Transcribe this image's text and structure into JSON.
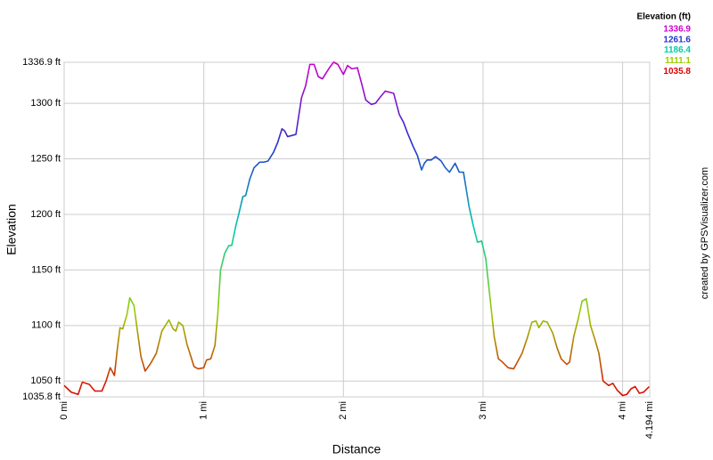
{
  "chart_data": {
    "type": "line",
    "x_label": "Distance",
    "y_label": "Elevation",
    "credit": "created by GPSVisualizer.com",
    "color_scale": {
      "title": "Elevation (ft)",
      "stops": [
        1336.9,
        1261.6,
        1186.4,
        1111.1,
        1035.8
      ],
      "colors": [
        "#cc00cc",
        "#2233cc",
        "#00ccaa",
        "#99cc00",
        "#dd0000"
      ]
    },
    "grid": true,
    "xlim": [
      0,
      4.194
    ],
    "xticks": [
      {
        "value": 0,
        "label": "0 mi"
      },
      {
        "value": 1,
        "label": "1 mi"
      },
      {
        "value": 2,
        "label": "2 mi"
      },
      {
        "value": 3,
        "label": "3 mi"
      },
      {
        "value": 4,
        "label": "4 mi"
      },
      {
        "value": 4.194,
        "label": "4.194 mi"
      }
    ],
    "ylim": [
      1035.8,
      1336.9
    ],
    "yticks": [
      {
        "value": 1035.8,
        "label": "1035.8 ft"
      },
      {
        "value": 1050,
        "label": "1050 ft"
      },
      {
        "value": 1100,
        "label": "1100 ft"
      },
      {
        "value": 1150,
        "label": "1150 ft"
      },
      {
        "value": 1200,
        "label": "1200 ft"
      },
      {
        "value": 1250,
        "label": "1250 ft"
      },
      {
        "value": 1300,
        "label": "1300 ft"
      },
      {
        "value": 1336.9,
        "label": "1336.9 ft"
      }
    ],
    "x": [
      0,
      0.05,
      0.1,
      0.13,
      0.18,
      0.22,
      0.27,
      0.3,
      0.33,
      0.36,
      0.38,
      0.4,
      0.42,
      0.45,
      0.47,
      0.5,
      0.53,
      0.55,
      0.58,
      0.62,
      0.66,
      0.7,
      0.73,
      0.75,
      0.78,
      0.8,
      0.82,
      0.85,
      0.88,
      0.9,
      0.93,
      0.96,
      1.0,
      1.02,
      1.05,
      1.08,
      1.1,
      1.12,
      1.15,
      1.18,
      1.2,
      1.23,
      1.25,
      1.28,
      1.3,
      1.33,
      1.36,
      1.4,
      1.43,
      1.46,
      1.5,
      1.53,
      1.56,
      1.58,
      1.6,
      1.63,
      1.66,
      1.7,
      1.73,
      1.76,
      1.79,
      1.82,
      1.85,
      1.88,
      1.9,
      1.93,
      1.96,
      2.0,
      2.03,
      2.06,
      2.1,
      2.13,
      2.16,
      2.2,
      2.23,
      2.26,
      2.3,
      2.33,
      2.36,
      2.4,
      2.43,
      2.46,
      2.5,
      2.53,
      2.56,
      2.58,
      2.6,
      2.63,
      2.66,
      2.7,
      2.73,
      2.76,
      2.8,
      2.83,
      2.86,
      2.9,
      2.93,
      2.96,
      2.99,
      3.02,
      3.05,
      3.08,
      3.11,
      3.14,
      3.18,
      3.22,
      3.25,
      3.28,
      3.32,
      3.35,
      3.38,
      3.4,
      3.43,
      3.46,
      3.5,
      3.53,
      3.56,
      3.6,
      3.62,
      3.65,
      3.68,
      3.71,
      3.74,
      3.77,
      3.8,
      3.83,
      3.86,
      3.9,
      3.93,
      3.96,
      4.0,
      4.03,
      4.06,
      4.09,
      4.12,
      4.15,
      4.19
    ],
    "values": [
      1046,
      1040,
      1038,
      1049,
      1047,
      1041,
      1041,
      1050,
      1062,
      1055,
      1078,
      1098,
      1097,
      1110,
      1125,
      1118,
      1090,
      1072,
      1059,
      1066,
      1075,
      1095,
      1101,
      1105,
      1097,
      1095,
      1103,
      1100,
      1083,
      1075,
      1063,
      1061,
      1062,
      1069,
      1070,
      1082,
      1110,
      1150,
      1165,
      1172,
      1172,
      1190,
      1200,
      1216,
      1217,
      1232,
      1242,
      1247,
      1247,
      1248,
      1256,
      1265,
      1277,
      1275,
      1270,
      1271,
      1272,
      1305,
      1316,
      1335,
      1335,
      1324,
      1322,
      1328,
      1332,
      1337,
      1335,
      1326,
      1334,
      1331,
      1332,
      1318,
      1303,
      1299,
      1300,
      1305,
      1311,
      1310,
      1309,
      1290,
      1283,
      1273,
      1261,
      1253,
      1240,
      1246,
      1249,
      1249,
      1252,
      1248,
      1242,
      1238,
      1246,
      1238,
      1238,
      1207,
      1190,
      1175,
      1176,
      1160,
      1125,
      1090,
      1070,
      1067,
      1062,
      1061,
      1068,
      1075,
      1090,
      1103,
      1104,
      1098,
      1104,
      1103,
      1093,
      1080,
      1070,
      1065,
      1067,
      1090,
      1105,
      1122,
      1124,
      1100,
      1088,
      1075,
      1050,
      1046,
      1048,
      1042,
      1037,
      1038,
      1043,
      1045,
      1039,
      1040,
      1045
    ]
  }
}
